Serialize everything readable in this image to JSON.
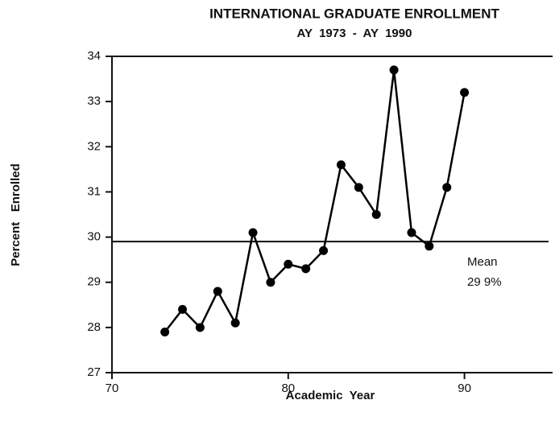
{
  "chart_data": {
    "type": "line",
    "title": "INTERNATIONAL GRADUATE ENROLLMENT",
    "subtitle": "AY  1973  -  AY  1990",
    "x_label": "Academic  Year",
    "y_label": "Percent   Enrolled",
    "x": [
      73,
      74,
      75,
      76,
      77,
      78,
      79,
      80,
      81,
      82,
      83,
      84,
      85,
      86,
      87,
      88,
      89,
      90
    ],
    "values": [
      27.9,
      28.4,
      28.0,
      28.8,
      28.1,
      30.1,
      29.0,
      29.4,
      29.3,
      29.7,
      31.6,
      31.1,
      30.5,
      33.7,
      30.1,
      29.8,
      31.1,
      33.2
    ],
    "color": "#000000",
    "mean": 29.9,
    "annotations": [
      "Mean",
      "29 9%"
    ],
    "xlim": [
      70,
      95
    ],
    "xticks": [
      70,
      80,
      90
    ],
    "ylim": [
      27,
      34
    ],
    "yticks": [
      27,
      28,
      29,
      30,
      31,
      32,
      33,
      34
    ]
  }
}
